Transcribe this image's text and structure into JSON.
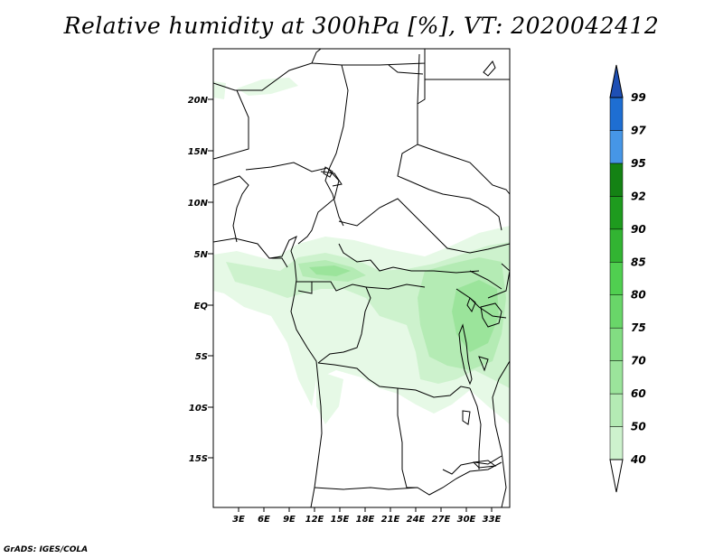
{
  "title": "Relative humidity at 300hPa [%], VT: 2020042412",
  "credit": "GrADS: IGES/COLA",
  "map": {
    "variable": "Relative humidity",
    "level": "300hPa",
    "units": "%",
    "valid_time": "2020042412",
    "lat_labels": [
      "20N",
      "15N",
      "10N",
      "5N",
      "EQ",
      "5S",
      "10S",
      "15S"
    ],
    "lon_labels": [
      "3E",
      "6E",
      "9E",
      "12E",
      "15E",
      "18E",
      "21E",
      "24E",
      "27E",
      "30E",
      "33E"
    ]
  },
  "colorbar": {
    "levels": [
      "40",
      "50",
      "60",
      "70",
      "75",
      "80",
      "85",
      "90",
      "92",
      "95",
      "97",
      "99"
    ],
    "colors": [
      "#e6f9e6",
      "#cdf2cd",
      "#b4ebb4",
      "#9be49b",
      "#82dd82",
      "#69d669",
      "#50cf50",
      "#32b432",
      "#1e9b1e",
      "#148214",
      "#4696e6",
      "#1e6ed2",
      "#1e4fb4"
    ]
  }
}
